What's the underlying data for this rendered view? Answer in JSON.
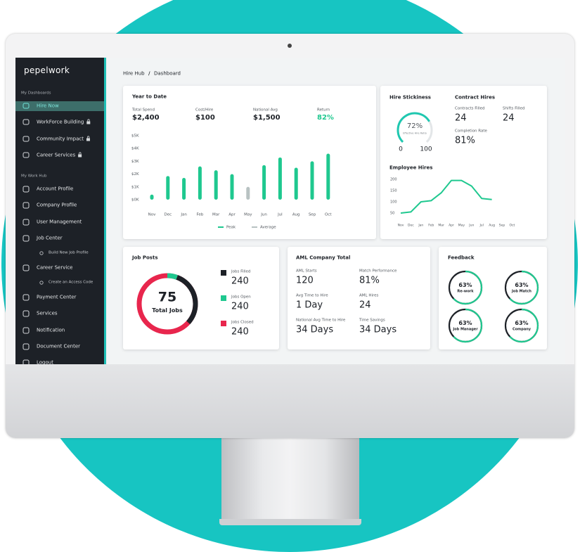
{
  "brand": "pepelwork",
  "sidebar": {
    "dashboards_title": "My Dashboards",
    "dashboards": [
      "Hire Now",
      "WorkForce Building",
      "Community Impact",
      "Career Services"
    ],
    "work_hub_title": "My Work Hub",
    "work_hub": [
      "Account Profile",
      "Company Profile",
      "User Management",
      "Job Center",
      "Build New Job Profile",
      "Career Service",
      "Create an Access Code",
      "Payment Center",
      "Services",
      "Notification",
      "Document Center",
      "Logout"
    ]
  },
  "breadcrumb": [
    "Hire Hub",
    "/",
    "Dashboard"
  ],
  "year_to_date": {
    "title": "Year to Date",
    "stats": [
      {
        "label": "Total Spend",
        "value": "$2,400"
      },
      {
        "label": "Cost/Hire",
        "value": "$100"
      },
      {
        "label": "National Avg",
        "value": "$1,500"
      },
      {
        "label": "Return",
        "value": "82%"
      }
    ]
  },
  "hire_stickiness": {
    "title": "Hire Stickiness",
    "value": 72,
    "value_label": "72%",
    "caption": "Effective Hire Ratio",
    "range": [
      0,
      100
    ]
  },
  "contract_hires": {
    "title": "Contract Hires",
    "stats": [
      {
        "label": "Contracts Filled",
        "value": "24"
      },
      {
        "label": "Shifts Filled",
        "value": "24"
      },
      {
        "label": "Completion Rate",
        "value": "81%"
      }
    ]
  },
  "job_posts": {
    "title": "Job Posts",
    "total": "75",
    "total_label": "Total Jobs",
    "items": [
      {
        "label": "Jobs Filled",
        "value": "240",
        "color": "#1d2127"
      },
      {
        "label": "Jobs Open",
        "value": "240",
        "color": "#1fc88f"
      },
      {
        "label": "Jobs Closed",
        "value": "240",
        "color": "#e8264d"
      }
    ]
  },
  "aml": {
    "title": "AML Company Total",
    "stats": [
      {
        "label": "AML Starts",
        "value": "120"
      },
      {
        "label": "Match Performance",
        "value": "81%"
      },
      {
        "label": "Avg Time to Hire",
        "value": "1 Day"
      },
      {
        "label": "AML Hires",
        "value": "24"
      },
      {
        "label": "National Avg Time to Hire",
        "value": "34 Days"
      },
      {
        "label": "Time Savings",
        "value": "34 Days"
      }
    ]
  },
  "feedback": {
    "title": "Feedback",
    "items": [
      {
        "value": 63,
        "value_label": "63%",
        "label": "Re-work"
      },
      {
        "value": 63,
        "value_label": "63%",
        "label": "Job Match"
      },
      {
        "value": 63,
        "value_label": "63%",
        "label": "Job Manager"
      },
      {
        "value": 63,
        "value_label": "63%",
        "label": "Company"
      }
    ]
  },
  "chart_data": [
    {
      "type": "bar",
      "categories": [
        "Nov",
        "Dec",
        "Jan",
        "Feb",
        "Mar",
        "Apr",
        "May",
        "Jun",
        "Jul",
        "Aug",
        "Sep",
        "Oct"
      ],
      "series": [
        {
          "name": "Peak",
          "color": "#1fc88f",
          "values": [
            400,
            1850,
            1700,
            2600,
            2300,
            2000,
            null,
            2700,
            3300,
            2500,
            3000,
            3600
          ]
        },
        {
          "name": "Average",
          "color": "#b8c2c2",
          "values": [
            null,
            null,
            null,
            null,
            null,
            null,
            1000,
            null,
            null,
            null,
            null,
            null
          ]
        }
      ],
      "ylim": [
        0,
        5000
      ],
      "yticks": [
        {
          "value": 0,
          "label": "$0K"
        },
        {
          "value": 1000,
          "label": "$1K"
        },
        {
          "value": 2000,
          "label": "$2K"
        },
        {
          "value": 3000,
          "label": "$3K"
        },
        {
          "value": 4000,
          "label": "$4K"
        },
        {
          "value": 5000,
          "label": "$5K"
        }
      ]
    },
    {
      "type": "line",
      "title": "Employee Hires",
      "categories": [
        "Nov",
        "Dec",
        "Jan",
        "Feb",
        "Mar",
        "Apr",
        "May",
        "Jun",
        "Jul",
        "Aug",
        "Sep",
        "Oct"
      ],
      "series": [
        {
          "color": "#1fc88f",
          "values": [
            50,
            55,
            100,
            105,
            140,
            195,
            195,
            170,
            115,
            110,
            null,
            null
          ]
        }
      ],
      "ylim": [
        50,
        200
      ],
      "yticks": [
        50,
        100,
        150,
        200
      ]
    }
  ]
}
